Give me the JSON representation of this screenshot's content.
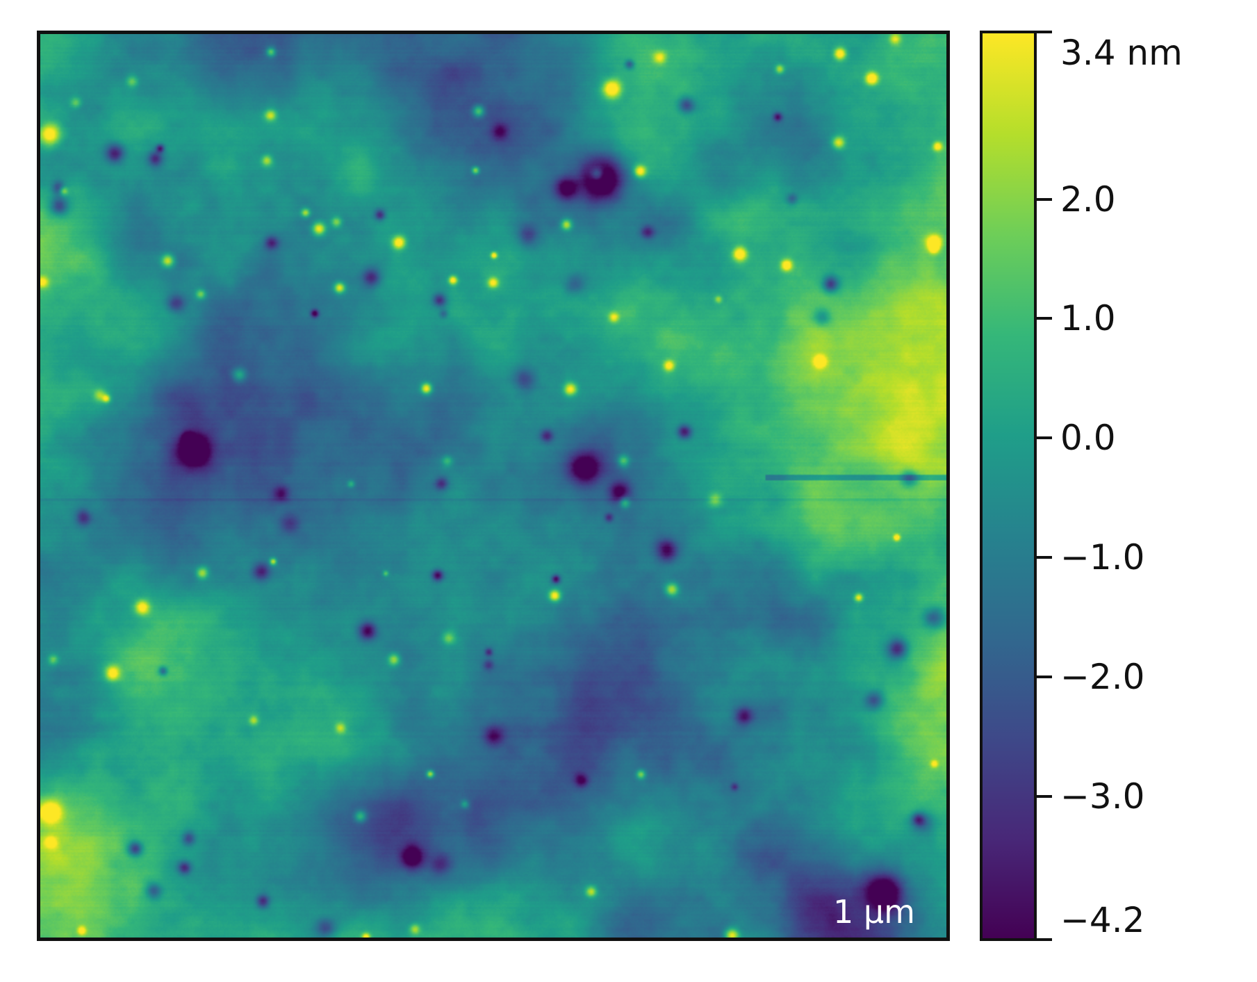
{
  "image": {
    "kind": "afm-topography-map",
    "colormap": [
      "#440154",
      "#482878",
      "#3e4989",
      "#31688e",
      "#26828e",
      "#1f9e89",
      "#35b779",
      "#6ece58",
      "#b5de2b",
      "#fde725"
    ]
  },
  "scalebar": {
    "label": "1 µm",
    "color": "#ffffff"
  },
  "colorbar": {
    "min": -4.2,
    "max": 3.4,
    "ticks": [
      {
        "value": 3.4,
        "label": "3.4 nm"
      },
      {
        "value": 2.0,
        "label": "2.0"
      },
      {
        "value": 1.0,
        "label": "1.0"
      },
      {
        "value": 0.0,
        "label": "0.0"
      },
      {
        "value": -1.0,
        "label": "−1.0"
      },
      {
        "value": -2.0,
        "label": "−2.0"
      },
      {
        "value": -3.0,
        "label": "−3.0"
      },
      {
        "value": -4.2,
        "label": "−4.2"
      }
    ]
  }
}
